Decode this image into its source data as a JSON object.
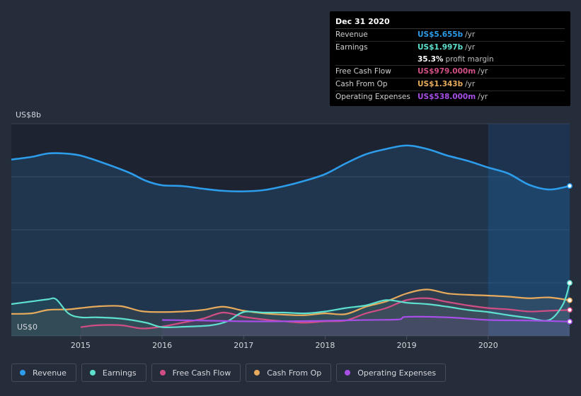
{
  "tooltip": {
    "date": "Dec 31 2020",
    "rows": [
      {
        "label": "Revenue",
        "value": "US$5.655b",
        "unit": "/yr",
        "color": "#2d9cea"
      },
      {
        "label": "Earnings",
        "value": "US$1.997b",
        "unit": "/yr",
        "color": "#5ee0cf"
      },
      {
        "label": "",
        "value": "35.3%",
        "unit": "profit margin",
        "color": "#ffffff"
      },
      {
        "label": "Free Cash Flow",
        "value": "US$979.000m",
        "unit": "/yr",
        "color": "#d14e85"
      },
      {
        "label": "Cash From Op",
        "value": "US$1.343b",
        "unit": "/yr",
        "color": "#e8ab5c"
      },
      {
        "label": "Operating Expenses",
        "value": "US$538.000m",
        "unit": "/yr",
        "color": "#a54fe6"
      }
    ]
  },
  "chart_data": {
    "type": "line",
    "y_top_label": "US$8b",
    "y_bottom_label": "US$0",
    "ylim": [
      0,
      8
    ],
    "xlim": [
      2014.15,
      2021.0
    ],
    "x_ticks": [
      "2015",
      "2016",
      "2017",
      "2018",
      "2019",
      "2020"
    ],
    "grid": true,
    "legend_position": "bottom-left",
    "series": [
      {
        "name": "Revenue",
        "color": "#2d9cea",
        "points": [
          [
            2014.15,
            6.65
          ],
          [
            2014.4,
            6.75
          ],
          [
            2014.6,
            6.88
          ],
          [
            2014.8,
            6.88
          ],
          [
            2015.0,
            6.8
          ],
          [
            2015.3,
            6.5
          ],
          [
            2015.6,
            6.15
          ],
          [
            2015.8,
            5.85
          ],
          [
            2016.0,
            5.68
          ],
          [
            2016.25,
            5.65
          ],
          [
            2016.5,
            5.55
          ],
          [
            2016.75,
            5.47
          ],
          [
            2017.0,
            5.45
          ],
          [
            2017.25,
            5.5
          ],
          [
            2017.5,
            5.65
          ],
          [
            2017.75,
            5.85
          ],
          [
            2018.0,
            6.1
          ],
          [
            2018.25,
            6.5
          ],
          [
            2018.5,
            6.85
          ],
          [
            2018.75,
            7.05
          ],
          [
            2019.0,
            7.18
          ],
          [
            2019.25,
            7.05
          ],
          [
            2019.5,
            6.8
          ],
          [
            2019.75,
            6.6
          ],
          [
            2020.0,
            6.35
          ],
          [
            2020.25,
            6.12
          ],
          [
            2020.5,
            5.7
          ],
          [
            2020.75,
            5.52
          ],
          [
            2021.0,
            5.655
          ]
        ]
      },
      {
        "name": "Earnings",
        "color": "#5ee0cf",
        "points": [
          [
            2014.15,
            1.2
          ],
          [
            2014.4,
            1.3
          ],
          [
            2014.6,
            1.38
          ],
          [
            2014.7,
            1.38
          ],
          [
            2014.85,
            0.85
          ],
          [
            2015.0,
            0.7
          ],
          [
            2015.2,
            0.7
          ],
          [
            2015.5,
            0.65
          ],
          [
            2015.8,
            0.5
          ],
          [
            2016.0,
            0.33
          ],
          [
            2016.3,
            0.35
          ],
          [
            2016.6,
            0.4
          ],
          [
            2016.8,
            0.55
          ],
          [
            2017.0,
            0.9
          ],
          [
            2017.25,
            0.88
          ],
          [
            2017.5,
            0.88
          ],
          [
            2017.75,
            0.85
          ],
          [
            2018.0,
            0.92
          ],
          [
            2018.25,
            1.05
          ],
          [
            2018.5,
            1.15
          ],
          [
            2018.75,
            1.35
          ],
          [
            2019.0,
            1.25
          ],
          [
            2019.25,
            1.2
          ],
          [
            2019.5,
            1.1
          ],
          [
            2019.75,
            0.98
          ],
          [
            2020.0,
            0.9
          ],
          [
            2020.25,
            0.78
          ],
          [
            2020.5,
            0.68
          ],
          [
            2020.75,
            0.6
          ],
          [
            2020.92,
            1.2
          ],
          [
            2021.0,
            1.997
          ]
        ]
      },
      {
        "name": "Free Cash Flow",
        "color": "#d14e85",
        "points": [
          [
            2015.0,
            0.33
          ],
          [
            2015.2,
            0.4
          ],
          [
            2015.5,
            0.4
          ],
          [
            2015.75,
            0.28
          ],
          [
            2016.0,
            0.35
          ],
          [
            2016.25,
            0.5
          ],
          [
            2016.5,
            0.65
          ],
          [
            2016.75,
            0.88
          ],
          [
            2017.0,
            0.72
          ],
          [
            2017.25,
            0.62
          ],
          [
            2017.5,
            0.55
          ],
          [
            2017.75,
            0.5
          ],
          [
            2018.0,
            0.55
          ],
          [
            2018.25,
            0.58
          ],
          [
            2018.5,
            0.85
          ],
          [
            2018.75,
            1.05
          ],
          [
            2019.0,
            1.35
          ],
          [
            2019.25,
            1.42
          ],
          [
            2019.5,
            1.28
          ],
          [
            2019.75,
            1.15
          ],
          [
            2020.0,
            1.05
          ],
          [
            2020.25,
            1.0
          ],
          [
            2020.5,
            0.92
          ],
          [
            2020.75,
            0.95
          ],
          [
            2021.0,
            0.979
          ]
        ]
      },
      {
        "name": "Cash From Op",
        "color": "#e8ab5c",
        "points": [
          [
            2014.15,
            0.83
          ],
          [
            2014.4,
            0.85
          ],
          [
            2014.6,
            0.98
          ],
          [
            2014.85,
            1.0
          ],
          [
            2015.0,
            1.05
          ],
          [
            2015.25,
            1.12
          ],
          [
            2015.5,
            1.12
          ],
          [
            2015.75,
            0.93
          ],
          [
            2016.0,
            0.9
          ],
          [
            2016.25,
            0.92
          ],
          [
            2016.5,
            0.98
          ],
          [
            2016.75,
            1.1
          ],
          [
            2017.0,
            0.95
          ],
          [
            2017.25,
            0.85
          ],
          [
            2017.5,
            0.8
          ],
          [
            2017.75,
            0.78
          ],
          [
            2018.0,
            0.85
          ],
          [
            2018.25,
            0.82
          ],
          [
            2018.5,
            1.1
          ],
          [
            2018.75,
            1.3
          ],
          [
            2019.0,
            1.6
          ],
          [
            2019.25,
            1.75
          ],
          [
            2019.5,
            1.6
          ],
          [
            2019.75,
            1.55
          ],
          [
            2020.0,
            1.52
          ],
          [
            2020.25,
            1.48
          ],
          [
            2020.5,
            1.42
          ],
          [
            2020.75,
            1.45
          ],
          [
            2021.0,
            1.343
          ]
        ]
      },
      {
        "name": "Operating Expenses",
        "color": "#a54fe6",
        "points": [
          [
            2016.0,
            0.6
          ],
          [
            2016.5,
            0.58
          ],
          [
            2017.0,
            0.55
          ],
          [
            2017.5,
            0.55
          ],
          [
            2018.0,
            0.57
          ],
          [
            2018.5,
            0.6
          ],
          [
            2018.9,
            0.62
          ],
          [
            2019.0,
            0.72
          ],
          [
            2019.5,
            0.7
          ],
          [
            2020.0,
            0.6
          ],
          [
            2020.5,
            0.58
          ],
          [
            2021.0,
            0.538
          ]
        ]
      }
    ],
    "highlight_from_x": 2020.0
  }
}
